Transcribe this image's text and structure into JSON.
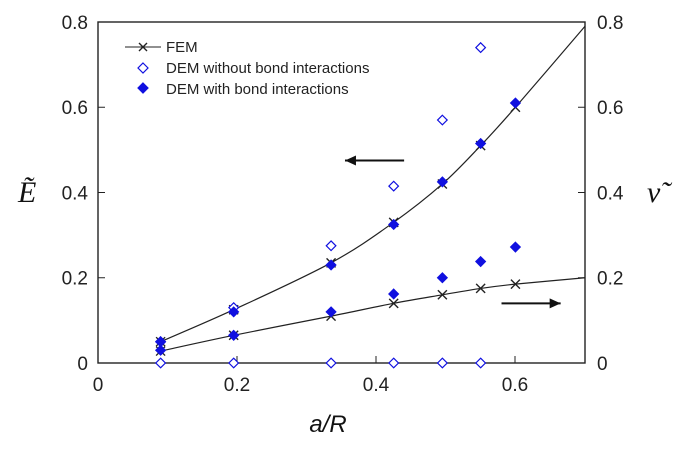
{
  "chart_data": {
    "type": "line",
    "xlabel": "a/R",
    "ylabel_left": "Ẽ",
    "ylabel_right": "ν̃",
    "xlim": [
      0,
      0.7
    ],
    "ylim": [
      0,
      0.8
    ],
    "ylim_right": [
      0,
      0.8
    ],
    "xticks": [
      "0",
      "0.2",
      "0.4",
      "0.6"
    ],
    "yticks_left": [
      "0",
      "0.2",
      "0.4",
      "0.6",
      "0.8"
    ],
    "yticks_right": [
      "0",
      "0.2",
      "0.4",
      "0.6",
      "0.8"
    ],
    "grid": false,
    "legend_position": "top-left",
    "legend": [
      {
        "label": "FEM",
        "marker": "x-line"
      },
      {
        "label": "DEM without bond interactions",
        "marker": "open-diamond"
      },
      {
        "label": "DEM with bond interactions",
        "marker": "filled-diamond"
      }
    ],
    "fem_E": {
      "markers_x": [
        0.09,
        0.195,
        0.335,
        0.425,
        0.495,
        0.55,
        0.6
      ],
      "markers_y": [
        0.05,
        0.125,
        0.235,
        0.33,
        0.42,
        0.51,
        0.6
      ],
      "curve_x": [
        0.09,
        0.195,
        0.335,
        0.425,
        0.495,
        0.55,
        0.6,
        0.7
      ],
      "curve_y": [
        0.05,
        0.125,
        0.235,
        0.33,
        0.42,
        0.51,
        0.6,
        0.79
      ]
    },
    "fem_nu": {
      "markers_x": [
        0.09,
        0.195,
        0.335,
        0.425,
        0.495,
        0.55,
        0.6
      ],
      "markers_y": [
        0.028,
        0.065,
        0.11,
        0.14,
        0.16,
        0.175,
        0.185
      ],
      "curve_x": [
        0.09,
        0.195,
        0.335,
        0.425,
        0.495,
        0.55,
        0.6,
        0.7
      ],
      "curve_y": [
        0.028,
        0.065,
        0.11,
        0.14,
        0.16,
        0.175,
        0.185,
        0.2
      ]
    },
    "dem_without_bond": {
      "E": {
        "x": [
          0.09,
          0.195,
          0.335,
          0.425,
          0.495,
          0.55
        ],
        "y": [
          0.05,
          0.13,
          0.275,
          0.415,
          0.57,
          0.74
        ]
      },
      "nu": {
        "x": [
          0.09,
          0.195,
          0.335,
          0.425,
          0.495,
          0.55
        ],
        "y": [
          0.0,
          0.0,
          0.0,
          0.0,
          0.0,
          0.0
        ]
      }
    },
    "dem_with_bond": {
      "E": {
        "x": [
          0.09,
          0.195,
          0.335,
          0.425,
          0.495,
          0.55,
          0.6
        ],
        "y": [
          0.05,
          0.12,
          0.23,
          0.325,
          0.425,
          0.515,
          0.61
        ]
      },
      "nu": {
        "x": [
          0.09,
          0.195,
          0.335,
          0.425,
          0.495,
          0.55,
          0.6
        ],
        "y": [
          0.03,
          0.065,
          0.12,
          0.162,
          0.2,
          0.238,
          0.272
        ]
      }
    },
    "annotations": [
      {
        "type": "arrow",
        "direction": "left",
        "refers_to": "left axis (Ẽ)"
      },
      {
        "type": "arrow",
        "direction": "right",
        "refers_to": "right axis (ν̃)"
      }
    ],
    "colors": {
      "fem": "#222222",
      "dem": "#1010e0"
    }
  }
}
